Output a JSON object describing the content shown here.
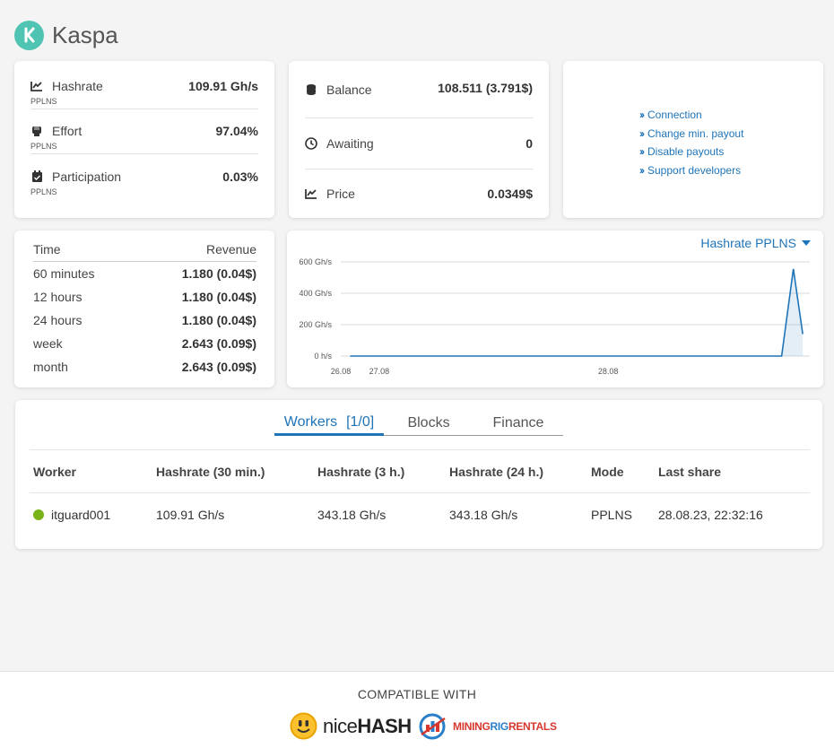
{
  "app": {
    "title": "Kaspa",
    "accent": "#1f74b8",
    "logo_color": "#4fc4b2",
    "online_color": "#7ab317"
  },
  "stats_a": [
    {
      "icon": "chart-line-icon",
      "label": "Hashrate",
      "value": "109.91 Gh/s",
      "sub": "PPLNS"
    },
    {
      "icon": "fist-icon",
      "label": "Effort",
      "value": "97.04%",
      "sub": "PPLNS"
    },
    {
      "icon": "calendar-check-icon",
      "label": "Participation",
      "value": "0.03%",
      "sub": "PPLNS"
    }
  ],
  "stats_b": [
    {
      "icon": "coins-icon",
      "label": "Balance",
      "value": "108.511 (3.791$)"
    },
    {
      "icon": "clock-icon",
      "label": "Awaiting",
      "value": "0"
    },
    {
      "icon": "chart-line-icon",
      "label": "Price",
      "value": "0.0349$"
    }
  ],
  "links": [
    "Connection",
    "Change min. payout",
    "Disable payouts",
    "Support developers"
  ],
  "revenue": {
    "col_time": "Time",
    "col_revenue": "Revenue",
    "rows": [
      {
        "period": "60 minutes",
        "amount": "1.180 (0.04$)"
      },
      {
        "period": "12 hours",
        "amount": "1.180 (0.04$)"
      },
      {
        "period": "24 hours",
        "amount": "1.180 (0.04$)"
      },
      {
        "period": "week",
        "amount": "2.643 (0.09$)"
      },
      {
        "period": "month",
        "amount": "2.643 (0.09$)"
      }
    ]
  },
  "chart_selector": "Hashrate PPLNS",
  "chart_data": {
    "type": "area",
    "ylim": [
      0,
      600
    ],
    "y_ticks": [
      {
        "value": 600,
        "label": "600 Gh/s"
      },
      {
        "value": 400,
        "label": "400 Gh/s"
      },
      {
        "value": 200,
        "label": "200 Gh/s"
      },
      {
        "value": 0,
        "label": "0 h/s"
      }
    ],
    "x_ticks": [
      {
        "pos": 0,
        "label": "26.08"
      },
      {
        "pos": 0.082,
        "label": "27.08"
      },
      {
        "pos": 0.57,
        "label": "28.08"
      }
    ],
    "series": [
      {
        "color": "#1f74b8",
        "points": [
          [
            0.02,
            0
          ],
          [
            0.94,
            0
          ],
          [
            0.965,
            555
          ],
          [
            0.985,
            140
          ]
        ]
      }
    ]
  },
  "tabs": [
    {
      "label": "Workers",
      "badge": "[1/0]"
    },
    {
      "label": "Blocks"
    },
    {
      "label": "Finance"
    }
  ],
  "workers": {
    "headers": [
      "Worker",
      "Hashrate (30 min.)",
      "Hashrate (3 h.)",
      "Hashrate (24 h.)",
      "Mode",
      "Last share"
    ],
    "rows": [
      {
        "name": "itguard001",
        "h30": "109.91 Gh/s",
        "h3": "343.18 Gh/s",
        "h24": "343.18 Gh/s",
        "mode": "PPLNS",
        "last": "28.08.23, 22:32:16"
      }
    ]
  },
  "footer": {
    "compatible": "COMPATIBLE WITH",
    "nicehash_a": "nice",
    "nicehash_b": "HASH",
    "mrr_a": "MINING",
    "mrr_b": "RIG",
    "mrr_c": "RENTALS"
  }
}
